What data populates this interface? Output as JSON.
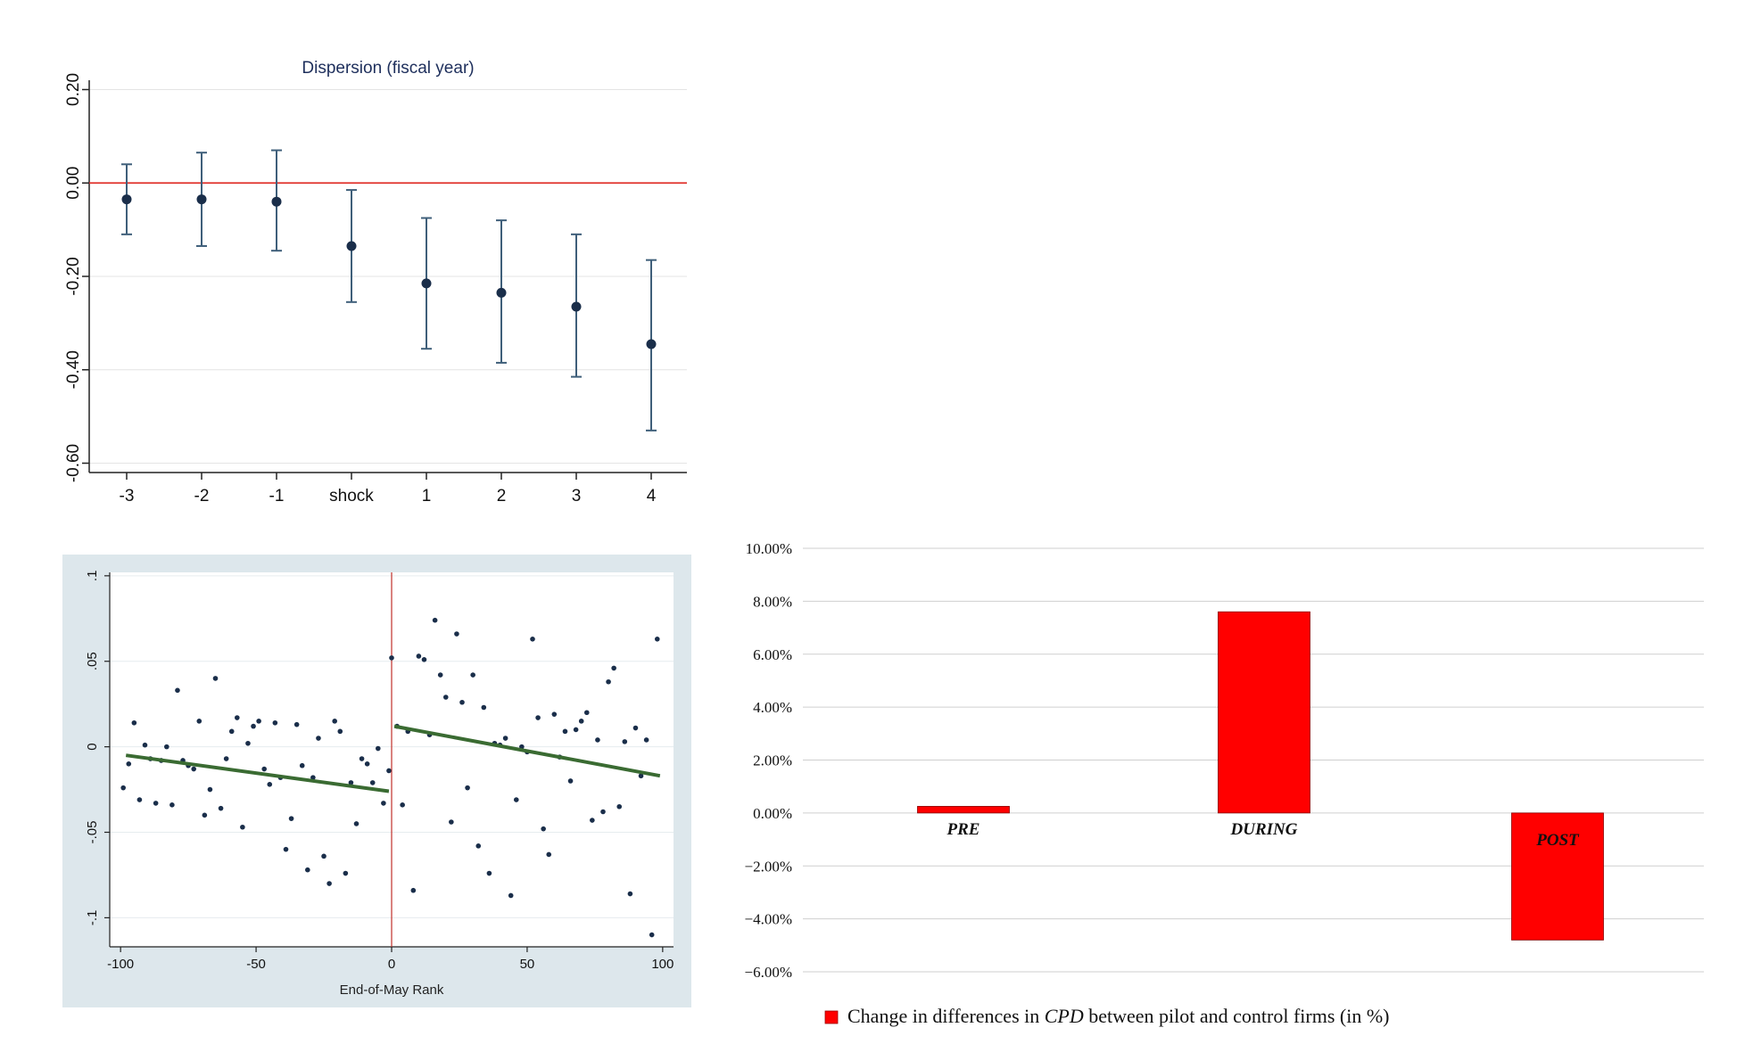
{
  "chart_data": [
    {
      "type": "scatter",
      "subtype": "coefficient-plot-with-error-bars",
      "title": "Dispersion (fiscal year)",
      "xlabel": "",
      "ylabel": "",
      "categories": [
        "-3",
        "-2",
        "-1",
        "shock",
        "1",
        "2",
        "3",
        "4"
      ],
      "estimates": [
        -0.035,
        -0.035,
        -0.04,
        -0.135,
        -0.215,
        -0.235,
        -0.265,
        -0.345
      ],
      "ci_low": [
        -0.11,
        -0.135,
        -0.145,
        -0.255,
        -0.355,
        -0.385,
        -0.415,
        -0.53
      ],
      "ci_high": [
        0.04,
        0.065,
        0.07,
        -0.015,
        -0.075,
        -0.08,
        -0.11,
        -0.165
      ],
      "yticks": [
        "0.20",
        "0.00",
        "-0.20",
        "-0.40",
        "-0.60"
      ],
      "ytick_values": [
        0.2,
        0.0,
        -0.2,
        -0.4,
        -0.6
      ],
      "ylim": [
        -0.62,
        0.22
      ],
      "reference_line": 0,
      "reference_color": "#e0302a",
      "point_color": "#1a2e4a",
      "grid": "horizontal"
    },
    {
      "type": "scatter",
      "subtype": "regression-discontinuity",
      "xlabel": "End-of-May Rank",
      "ylabel": "",
      "xticks": [
        "-100",
        "-50",
        "0",
        "50",
        "100"
      ],
      "xtick_values": [
        -100,
        -50,
        0,
        50,
        100
      ],
      "yticks": [
        ".1",
        ".05",
        "0",
        "-.05",
        "-.1"
      ],
      "ytick_values": [
        0.1,
        0.05,
        0,
        -0.05,
        -0.1
      ],
      "xlim": [
        -104,
        104
      ],
      "ylim": [
        -0.117,
        0.102
      ],
      "cutoff": 0,
      "fit_left": {
        "x": [
          -98,
          -1
        ],
        "y": [
          -0.005,
          -0.026
        ]
      },
      "fit_right": {
        "x": [
          1,
          99
        ],
        "y": [
          0.012,
          -0.017
        ]
      },
      "points": [
        [
          -99,
          -0.024
        ],
        [
          -97,
          -0.01
        ],
        [
          -95,
          0.014
        ],
        [
          -93,
          -0.031
        ],
        [
          -91,
          0.001
        ],
        [
          -89,
          -0.007
        ],
        [
          -87,
          -0.033
        ],
        [
          -85,
          -0.008
        ],
        [
          -83,
          0.0
        ],
        [
          -81,
          -0.034
        ],
        [
          -79,
          0.033
        ],
        [
          -77,
          -0.008
        ],
        [
          -75,
          -0.011
        ],
        [
          -73,
          -0.013
        ],
        [
          -71,
          0.015
        ],
        [
          -69,
          -0.04
        ],
        [
          -67,
          -0.025
        ],
        [
          -65,
          0.04
        ],
        [
          -63,
          -0.036
        ],
        [
          -61,
          -0.007
        ],
        [
          -59,
          0.009
        ],
        [
          -57,
          0.017
        ],
        [
          -55,
          -0.047
        ],
        [
          -53,
          0.002
        ],
        [
          -51,
          0.012
        ],
        [
          -49,
          0.015
        ],
        [
          -47,
          -0.013
        ],
        [
          -45,
          -0.022
        ],
        [
          -43,
          0.014
        ],
        [
          -41,
          -0.018
        ],
        [
          -39,
          -0.06
        ],
        [
          -37,
          -0.042
        ],
        [
          -35,
          0.013
        ],
        [
          -33,
          -0.011
        ],
        [
          -31,
          -0.072
        ],
        [
          -29,
          -0.018
        ],
        [
          -27,
          0.005
        ],
        [
          -25,
          -0.064
        ],
        [
          -23,
          -0.08
        ],
        [
          -21,
          0.015
        ],
        [
          -19,
          0.009
        ],
        [
          -17,
          -0.074
        ],
        [
          -15,
          -0.021
        ],
        [
          -13,
          -0.045
        ],
        [
          -11,
          -0.007
        ],
        [
          -9,
          -0.01
        ],
        [
          -7,
          -0.021
        ],
        [
          -5,
          -0.001
        ],
        [
          -3,
          -0.033
        ],
        [
          -1,
          -0.014
        ],
        [
          0,
          0.052
        ],
        [
          2,
          0.012
        ],
        [
          4,
          -0.034
        ],
        [
          6,
          0.009
        ],
        [
          8,
          -0.084
        ],
        [
          10,
          0.053
        ],
        [
          12,
          0.051
        ],
        [
          14,
          0.007
        ],
        [
          16,
          0.074
        ],
        [
          18,
          0.042
        ],
        [
          20,
          0.029
        ],
        [
          22,
          -0.044
        ],
        [
          24,
          0.066
        ],
        [
          26,
          0.026
        ],
        [
          28,
          -0.024
        ],
        [
          30,
          0.042
        ],
        [
          32,
          -0.058
        ],
        [
          34,
          0.023
        ],
        [
          36,
          -0.074
        ],
        [
          38,
          0.002
        ],
        [
          40,
          0.001
        ],
        [
          42,
          0.005
        ],
        [
          44,
          -0.087
        ],
        [
          46,
          -0.031
        ],
        [
          48,
          0.0
        ],
        [
          50,
          -0.003
        ],
        [
          52,
          0.063
        ],
        [
          54,
          0.017
        ],
        [
          56,
          -0.048
        ],
        [
          58,
          -0.063
        ],
        [
          60,
          0.019
        ],
        [
          62,
          -0.006
        ],
        [
          64,
          0.009
        ],
        [
          66,
          -0.02
        ],
        [
          68,
          0.01
        ],
        [
          70,
          0.015
        ],
        [
          72,
          0.02
        ],
        [
          74,
          -0.043
        ],
        [
          76,
          0.004
        ],
        [
          78,
          -0.038
        ],
        [
          80,
          0.038
        ],
        [
          82,
          0.046
        ],
        [
          84,
          -0.035
        ],
        [
          86,
          0.003
        ],
        [
          88,
          -0.086
        ],
        [
          90,
          0.011
        ],
        [
          92,
          -0.017
        ],
        [
          94,
          0.004
        ],
        [
          96,
          -0.11
        ],
        [
          98,
          0.063
        ]
      ],
      "point_color": "#1a2e4a",
      "fit_color": "#3a6b32",
      "cutoff_color": "#c0302a",
      "background": "#dde7ec",
      "grid": "horizontal"
    },
    {
      "type": "bar",
      "categories": [
        "PRE",
        "DURING",
        "POST"
      ],
      "values": [
        0.25,
        7.6,
        -4.8
      ],
      "yticks": [
        "10.00%",
        "8.00%",
        "6.00%",
        "4.00%",
        "2.00%",
        "0.00%",
        "−2.00%",
        "−4.00%",
        "−6.00%"
      ],
      "ytick_values": [
        10,
        8,
        6,
        4,
        2,
        0,
        -2,
        -4,
        -6
      ],
      "ylim": [
        -6,
        10
      ],
      "legend": {
        "position": "bottom",
        "text_before": "Change in differences in ",
        "text_italic": "CPD",
        "text_after": " between pilot and control firms (in %)"
      },
      "bar_color": "#ff0000",
      "grid": "horizontal"
    }
  ]
}
